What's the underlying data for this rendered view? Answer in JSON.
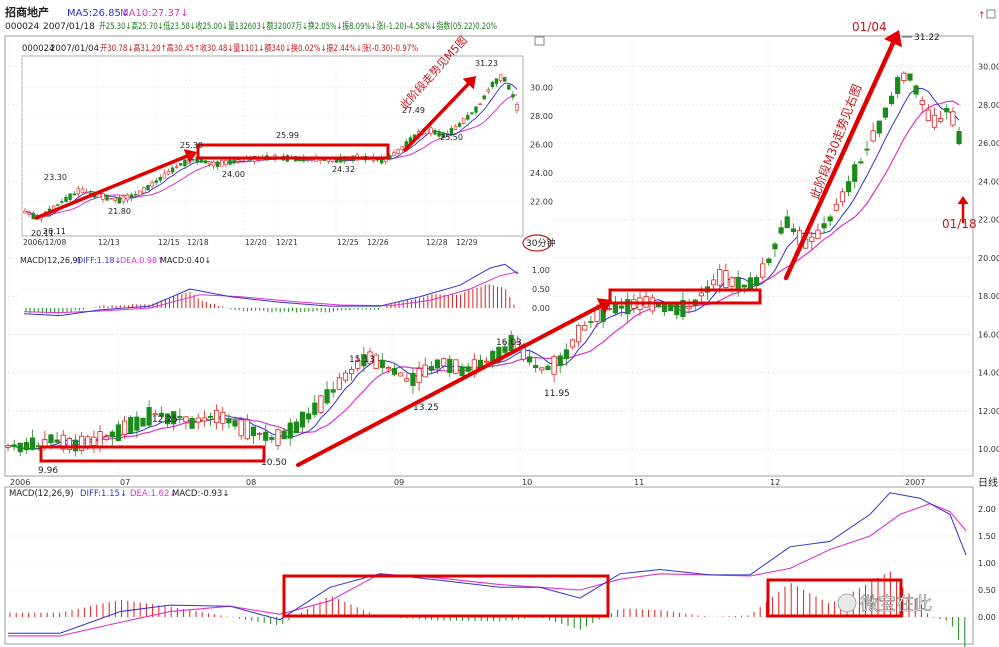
{
  "header": {
    "stock_name": "招商地产",
    "line1_code": "000024",
    "line1_date": "2007/01/18",
    "line1_quote": "开25.30↓高25.70↓低23.58↓收25.00↓量132603↓额32007万↓换2.05%↓振8.09%↓涨(-1.20)-4.58%↓指数(05.22)0.20%",
    "ma5_text": "MA5:26.85↓",
    "ma10_text": "MA10:27.37↓",
    "inset_code": "000024",
    "inset_date": "2007/01/04",
    "inset_quote": "开30.78↓高31.20↑高30.45↑收30.48↓量1101↓额340↓换0.02%↓振2.44%↓涨(-0.30)-0.97%"
  },
  "colors": {
    "up": "#e02020",
    "down": "#1a8a1a",
    "ma5": "#3333cc",
    "ma10": "#dd33cc",
    "highlight": "#e00000",
    "annot": "#c0181e"
  },
  "main_chart": {
    "title": "日线",
    "xlabels": [
      "2006",
      "07",
      "08",
      "09",
      "10",
      "11",
      "12",
      "2007"
    ],
    "ylabels": [
      "10.00",
      "12.00",
      "14.00",
      "16.00",
      "18.00",
      "20.00",
      "22.00",
      "24.00",
      "26.00",
      "28.00",
      "30.00"
    ],
    "ylim": [
      10,
      31.5
    ],
    "annotations": [
      "9.96",
      "12.25",
      "10.50",
      "15.13",
      "13.25",
      "16.03",
      "11.95",
      "31.22",
      "01/04",
      "01/18"
    ],
    "rotated_text": "此阶段M30走势见右图"
  },
  "chart_data": {
    "type": "candlestick",
    "points": [
      {
        "x": 0,
        "y": 10.2
      },
      {
        "x": 12,
        "y": 10.05
      },
      {
        "x": 22,
        "y": 10.3
      },
      {
        "x": 33,
        "y": 10.2
      },
      {
        "x": 44,
        "y": 10.6
      },
      {
        "x": 58,
        "y": 10.35
      },
      {
        "x": 72,
        "y": 10.25
      },
      {
        "x": 86,
        "y": 10.4
      },
      {
        "x": 100,
        "y": 10.6
      },
      {
        "x": 112,
        "y": 10.9
      },
      {
        "x": 125,
        "y": 11.2
      },
      {
        "x": 135,
        "y": 11.4
      },
      {
        "x": 143,
        "y": 11.7
      },
      {
        "x": 152,
        "y": 11.95
      },
      {
        "x": 162,
        "y": 11.6
      },
      {
        "x": 172,
        "y": 11.75
      },
      {
        "x": 185,
        "y": 11.45
      },
      {
        "x": 197,
        "y": 11.6
      },
      {
        "x": 210,
        "y": 11.7
      },
      {
        "x": 222,
        "y": 11.45
      },
      {
        "x": 235,
        "y": 11.2
      },
      {
        "x": 247,
        "y": 11.0
      },
      {
        "x": 257,
        "y": 10.75
      },
      {
        "x": 267,
        "y": 10.6
      },
      {
        "x": 277,
        "y": 10.7
      },
      {
        "x": 289,
        "y": 11.1
      },
      {
        "x": 300,
        "y": 11.6
      },
      {
        "x": 313,
        "y": 12.2
      },
      {
        "x": 325,
        "y": 12.9
      },
      {
        "x": 337,
        "y": 13.6
      },
      {
        "x": 349,
        "y": 14.2
      },
      {
        "x": 361,
        "y": 14.8
      },
      {
        "x": 371,
        "y": 14.6
      },
      {
        "x": 382,
        "y": 14.3
      },
      {
        "x": 394,
        "y": 14.0
      },
      {
        "x": 406,
        "y": 13.6
      },
      {
        "x": 416,
        "y": 13.9
      },
      {
        "x": 428,
        "y": 14.3
      },
      {
        "x": 440,
        "y": 14.55
      },
      {
        "x": 451,
        "y": 14.3
      },
      {
        "x": 463,
        "y": 14.1
      },
      {
        "x": 474,
        "y": 14.4
      },
      {
        "x": 486,
        "y": 14.7
      },
      {
        "x": 498,
        "y": 15.0
      },
      {
        "x": 508,
        "y": 15.6
      },
      {
        "x": 518,
        "y": 15.2
      },
      {
        "x": 528,
        "y": 14.6
      },
      {
        "x": 538,
        "y": 14.15
      },
      {
        "x": 548,
        "y": 14.3
      },
      {
        "x": 558,
        "y": 14.6
      },
      {
        "x": 568,
        "y": 15.4
      },
      {
        "x": 579,
        "y": 16.2
      },
      {
        "x": 590,
        "y": 16.7
      },
      {
        "x": 601,
        "y": 17.1
      },
      {
        "x": 612,
        "y": 17.4
      },
      {
        "x": 623,
        "y": 17.5
      },
      {
        "x": 635,
        "y": 17.6
      },
      {
        "x": 647,
        "y": 17.7
      },
      {
        "x": 660,
        "y": 17.55
      },
      {
        "x": 672,
        "y": 17.35
      },
      {
        "x": 685,
        "y": 17.3
      },
      {
        "x": 696,
        "y": 17.8
      },
      {
        "x": 708,
        "y": 18.4
      },
      {
        "x": 720,
        "y": 19.0
      },
      {
        "x": 732,
        "y": 18.8
      },
      {
        "x": 744,
        "y": 18.5
      },
      {
        "x": 756,
        "y": 18.8
      },
      {
        "x": 766,
        "y": 19.6
      },
      {
        "x": 776,
        "y": 20.8
      },
      {
        "x": 786,
        "y": 22.0
      },
      {
        "x": 797,
        "y": 21.2
      },
      {
        "x": 808,
        "y": 20.6
      },
      {
        "x": 820,
        "y": 21.4
      },
      {
        "x": 832,
        "y": 22.2
      },
      {
        "x": 844,
        "y": 23.2
      },
      {
        "x": 856,
        "y": 24.4
      },
      {
        "x": 867,
        "y": 25.6
      },
      {
        "x": 878,
        "y": 26.6
      },
      {
        "x": 889,
        "y": 27.8
      },
      {
        "x": 899,
        "y": 29.0
      },
      {
        "x": 909,
        "y": 29.8
      },
      {
        "x": 919,
        "y": 28.6
      },
      {
        "x": 929,
        "y": 27.4
      },
      {
        "x": 939,
        "y": 27.0
      },
      {
        "x": 949,
        "y": 27.8
      },
      {
        "x": 959,
        "y": 26.8
      },
      {
        "x": 966,
        "y": 25.0
      }
    ]
  },
  "main_macd": {
    "label": "MACD(12,26,9)",
    "diff_text": "DIFF:1.15↓",
    "dea_text": "DEA:1.62↓",
    "macd_text": "MACD:-0.93↓",
    "ylabels": [
      "0.00",
      "0.50",
      "1.00",
      "1.50",
      "2.00"
    ],
    "ylim": [
      -0.3,
      2.2
    ]
  },
  "inset": {
    "period_label": "30分钟",
    "xlabels": [
      "2006/12/08",
      "12/13",
      "12/15",
      "12/18",
      "12/20",
      "12/21",
      "12/25",
      "12/26",
      "12/28",
      "12/29"
    ],
    "ylabels": [
      "22.00",
      "24.00",
      "26.00",
      "28.00",
      "30.00"
    ],
    "ylim": [
      20,
      31.5
    ],
    "annotations": [
      "23.30",
      "20.11",
      "20.11",
      "21.80",
      "25.30",
      "24.00",
      "25.99",
      "24.32",
      "27.49",
      "25.50",
      "31.23"
    ],
    "rotated_text": "此阶段走势见M5图",
    "macd_label": "MACD(12,26,9)",
    "diff_text": "DIFF:1.18↓",
    "dea_text": "DEA:0.98↑",
    "macd_text": "MACD:0.40↓",
    "macd_ylabels": [
      "0.00",
      "0.50",
      "1.00"
    ]
  },
  "watermark": "微宝在此"
}
